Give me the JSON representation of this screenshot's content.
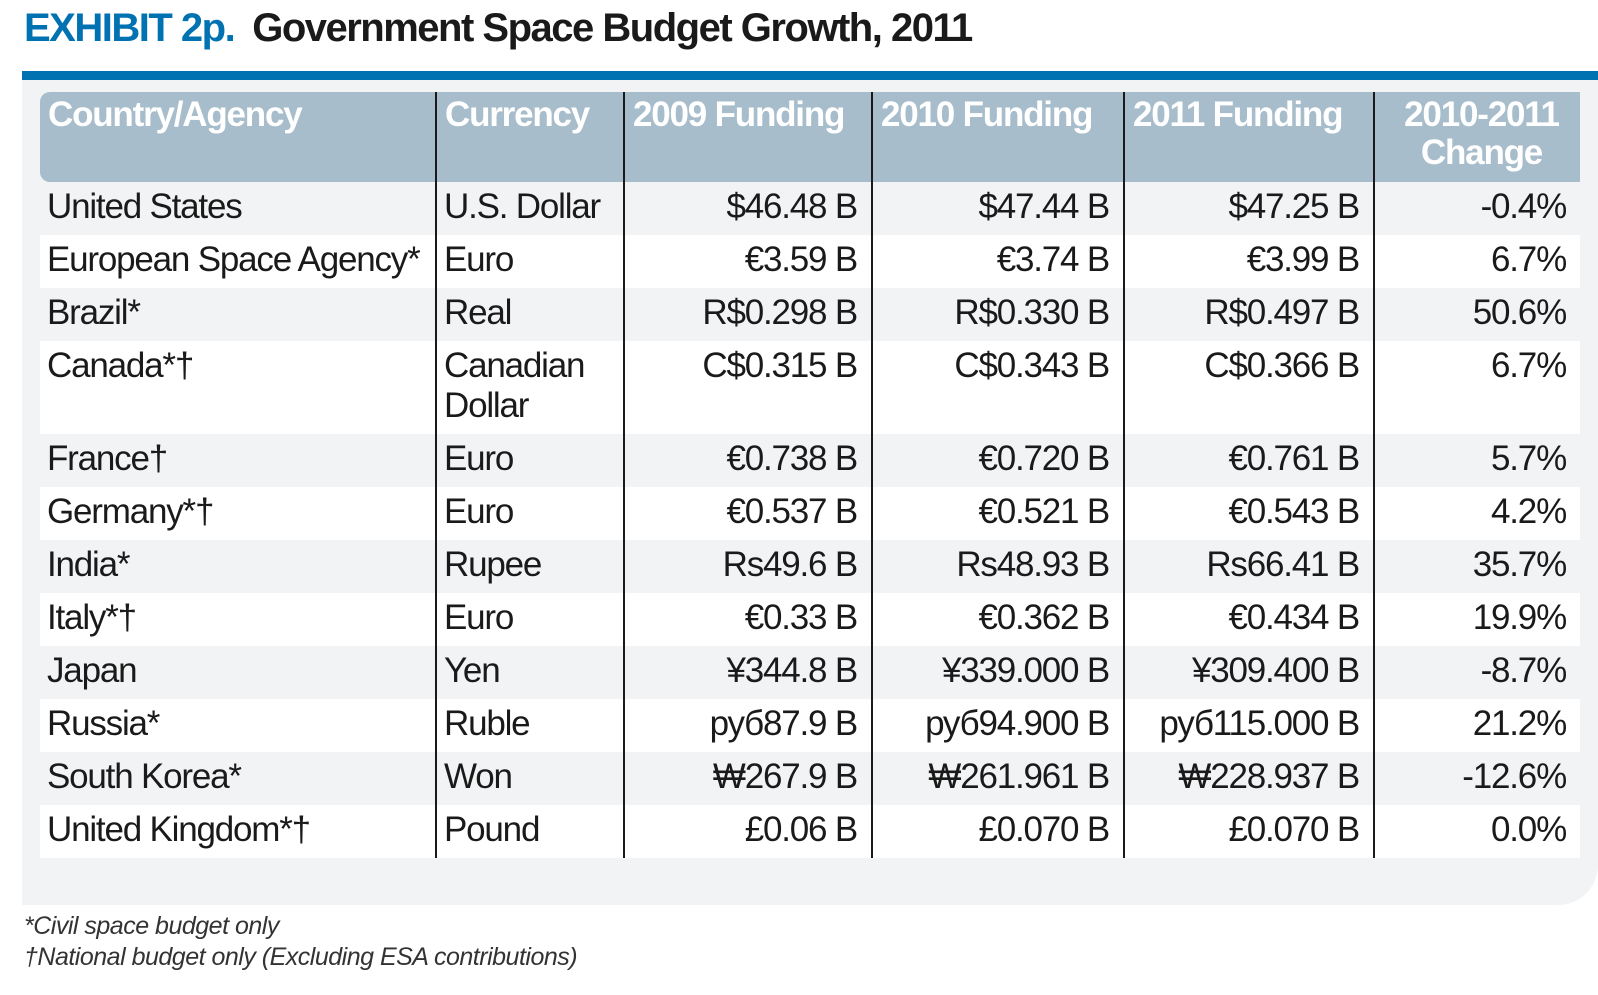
{
  "title": {
    "exhibit": "EXHIBIT 2p.",
    "text": "Government Space Budget Growth, 2011"
  },
  "colors": {
    "accent": "#0072b1",
    "header": "#a7bdcb",
    "panel": "#f2f3f5"
  },
  "table": {
    "headers": [
      "Country/Agency",
      "Currency",
      "2009 Funding",
      "2010 Funding",
      "2011 Funding",
      "2010-2011 Change"
    ],
    "rows": [
      [
        "United States",
        "U.S. Dollar",
        "$46.48 B",
        "$47.44 B",
        "$47.25 B",
        "-0.4%"
      ],
      [
        "European Space Agency*",
        "Euro",
        "€3.59 B",
        "€3.74 B",
        "€3.99 B",
        "6.7%"
      ],
      [
        "Brazil*",
        "Real",
        "R$0.298 B",
        "R$0.330 B",
        "R$0.497 B",
        "50.6%"
      ],
      [
        "Canada*†",
        "Canadian Dollar",
        "C$0.315 B",
        "C$0.343 B",
        "C$0.366 B",
        "6.7%"
      ],
      [
        "France†",
        "Euro",
        "€0.738 B",
        "€0.720 B",
        "€0.761 B",
        "5.7%"
      ],
      [
        "Germany*†",
        "Euro",
        "€0.537 B",
        "€0.521 B",
        "€0.543 B",
        "4.2%"
      ],
      [
        "India*",
        "Rupee",
        "Rs49.6 B",
        "Rs48.93 B",
        "Rs66.41 B",
        "35.7%"
      ],
      [
        "Italy*†",
        "Euro",
        "€0.33 B",
        "€0.362 B",
        "€0.434 B",
        "19.9%"
      ],
      [
        "Japan",
        "Yen",
        "¥344.8 B",
        "¥339.000 B",
        "¥309.400 B",
        "-8.7%"
      ],
      [
        "Russia*",
        "Ruble",
        "руб87.9 B",
        "руб94.900 B",
        "руб115.000 B",
        "21.2%"
      ],
      [
        "South Korea*",
        "Won",
        "₩267.9 B",
        "₩261.961 B",
        "₩228.937 B",
        "-12.6%"
      ],
      [
        "United Kingdom*†",
        "Pound",
        "£0.06 B",
        "£0.070 B",
        "£0.070 B",
        "0.0%"
      ]
    ]
  },
  "footnotes": [
    "*Civil space budget only",
    "†National budget only (Excluding ESA contributions)"
  ]
}
